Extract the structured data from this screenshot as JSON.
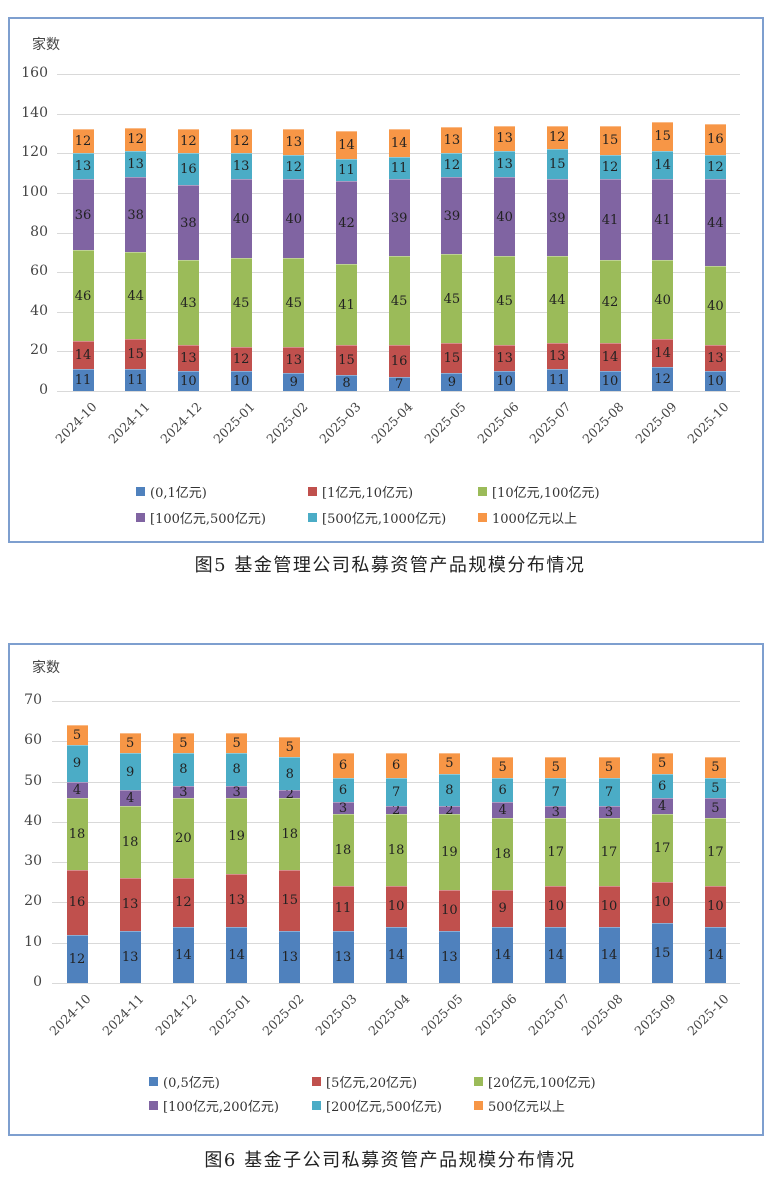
{
  "chart_data": [
    {
      "type": "bar",
      "stacked": true,
      "title": "图5  基金管理公司私募资管产品规模分布情况",
      "xlabel": "",
      "ylabel": "家数",
      "ylim": [
        0,
        160
      ],
      "yticks": [
        0,
        20,
        40,
        60,
        80,
        100,
        120,
        140,
        160
      ],
      "grid": true,
      "legend_position": "bottom",
      "categories": [
        "2024-10",
        "2024-11",
        "2024-12",
        "2025-01",
        "2025-02",
        "2025-03",
        "2025-04",
        "2025-05",
        "2025-06",
        "2025-07",
        "2025-08",
        "2025-09",
        "2025-10"
      ],
      "series": [
        {
          "name": "(0,1亿元)",
          "color": "#4f81bd",
          "values": [
            11,
            11,
            10,
            10,
            9,
            8,
            7,
            9,
            10,
            11,
            10,
            12,
            10
          ]
        },
        {
          "name": "[1亿元,10亿元)",
          "color": "#c0504d",
          "values": [
            14,
            15,
            13,
            12,
            13,
            15,
            16,
            15,
            13,
            13,
            14,
            14,
            13
          ]
        },
        {
          "name": "[10亿元,100亿元)",
          "color": "#9bbb59",
          "values": [
            46,
            44,
            43,
            45,
            45,
            41,
            45,
            45,
            45,
            44,
            42,
            40,
            40
          ]
        },
        {
          "name": "[100亿元,500亿元)",
          "color": "#8064a2",
          "values": [
            36,
            38,
            38,
            40,
            40,
            42,
            39,
            39,
            40,
            39,
            41,
            41,
            44
          ]
        },
        {
          "name": "[500亿元,1000亿元)",
          "color": "#4bacc6",
          "values": [
            13,
            13,
            16,
            13,
            12,
            11,
            11,
            12,
            13,
            15,
            12,
            14,
            12
          ]
        },
        {
          "name": "1000亿元以上",
          "color": "#f79646",
          "values": [
            12,
            12,
            12,
            12,
            13,
            14,
            14,
            13,
            13,
            12,
            15,
            15,
            16
          ]
        }
      ]
    },
    {
      "type": "bar",
      "stacked": true,
      "title": "图6  基金子公司私募资管产品规模分布情况",
      "xlabel": "",
      "ylabel": "家数",
      "ylim": [
        0,
        70
      ],
      "yticks": [
        0,
        10,
        20,
        30,
        40,
        50,
        60,
        70
      ],
      "grid": true,
      "legend_position": "bottom",
      "categories": [
        "2024-10",
        "2024-11",
        "2024-12",
        "2025-01",
        "2025-02",
        "2025-03",
        "2025-04",
        "2025-05",
        "2025-06",
        "2025-07",
        "2025-08",
        "2025-09",
        "2025-10"
      ],
      "series": [
        {
          "name": "(0,5亿元)",
          "color": "#4f81bd",
          "values": [
            12,
            13,
            14,
            14,
            13,
            13,
            14,
            13,
            14,
            14,
            14,
            15,
            14
          ]
        },
        {
          "name": "[5亿元,20亿元)",
          "color": "#c0504d",
          "values": [
            16,
            13,
            12,
            13,
            15,
            11,
            10,
            10,
            9,
            10,
            10,
            10,
            10
          ]
        },
        {
          "name": "[20亿元,100亿元)",
          "color": "#9bbb59",
          "values": [
            18,
            18,
            20,
            19,
            18,
            18,
            18,
            19,
            18,
            17,
            17,
            17,
            17
          ]
        },
        {
          "name": "[100亿元,200亿元)",
          "color": "#8064a2",
          "values": [
            4,
            4,
            3,
            3,
            2,
            3,
            2,
            2,
            4,
            3,
            3,
            4,
            5
          ]
        },
        {
          "name": "[200亿元,500亿元)",
          "color": "#4bacc6",
          "values": [
            9,
            9,
            8,
            8,
            8,
            6,
            7,
            8,
            6,
            7,
            7,
            6,
            5
          ]
        },
        {
          "name": "500亿元以上",
          "color": "#f79646",
          "values": [
            5,
            5,
            5,
            5,
            5,
            6,
            6,
            5,
            5,
            5,
            5,
            5,
            5
          ]
        }
      ]
    }
  ],
  "charts": [
    {
      "caption": "图5   基金管理公司私募资管产品规模分布情况",
      "ylabel": "家数"
    },
    {
      "caption": "图6   基金子公司私募资管产品规模分布情况",
      "ylabel": "家数"
    }
  ]
}
